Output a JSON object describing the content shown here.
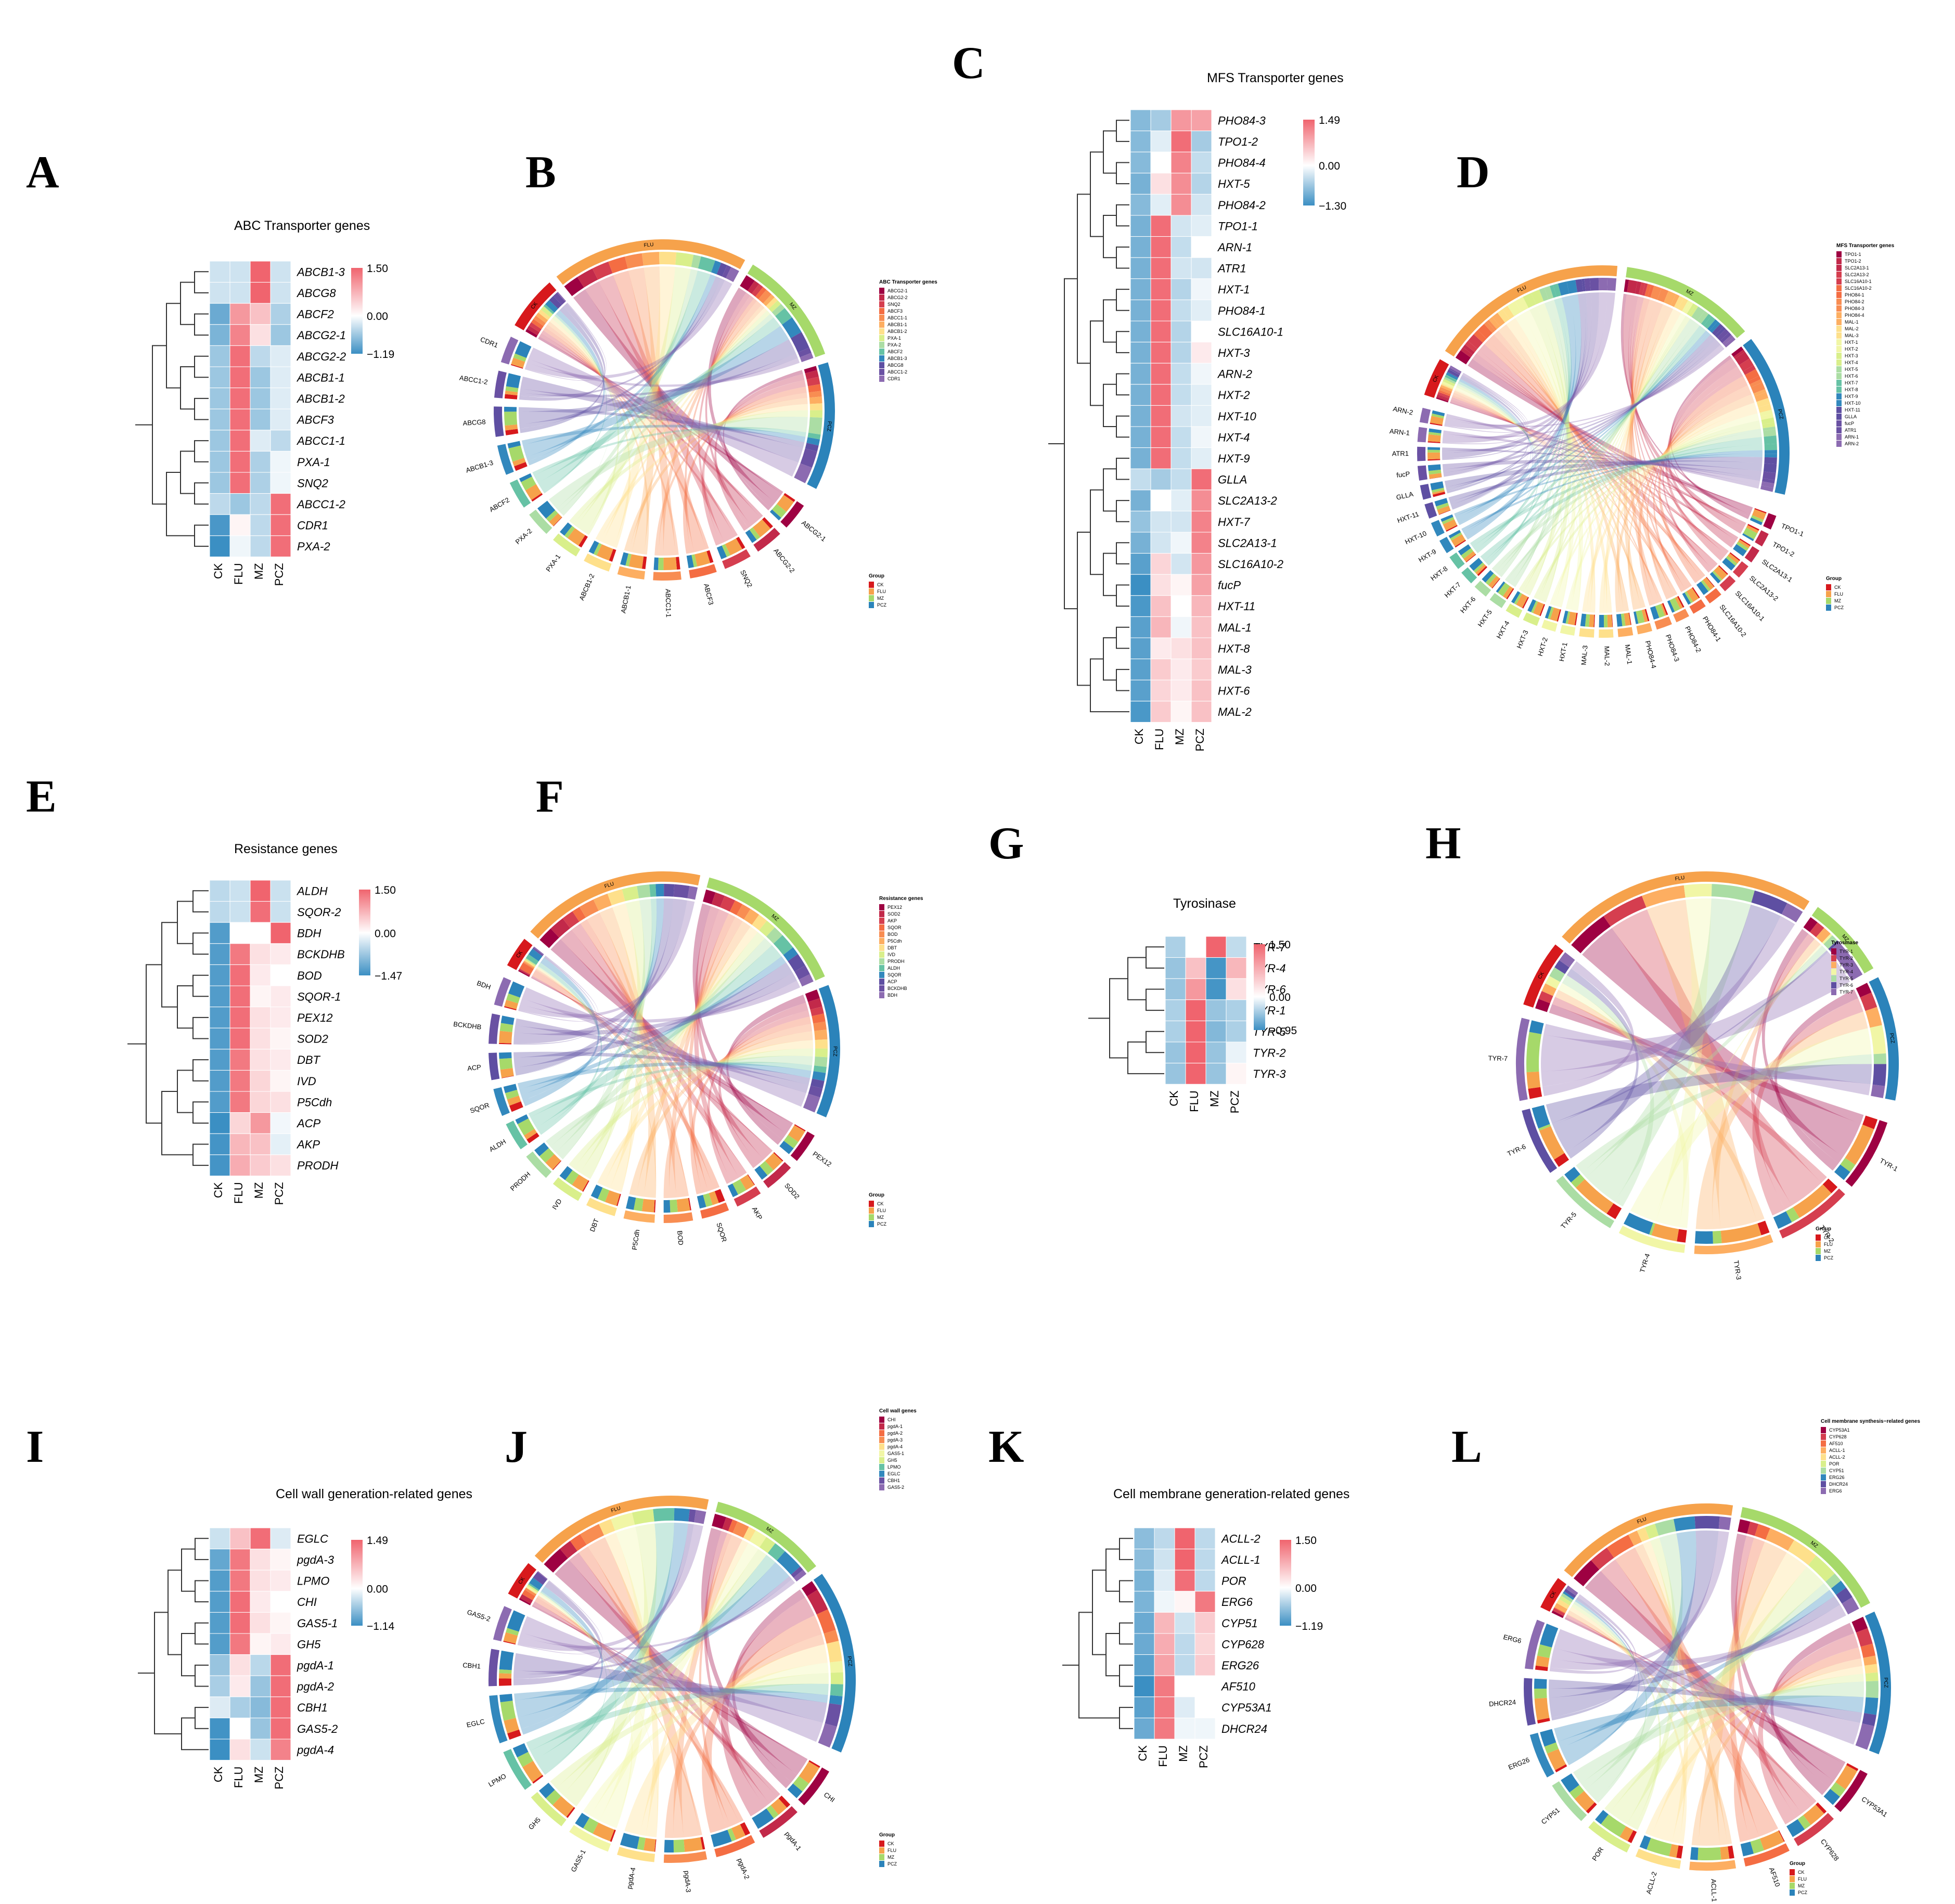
{
  "colors": {
    "low": "#3b8fc3",
    "mid": "#ffffff",
    "high": "#f0646e"
  },
  "group_colors": {
    "CK": "#d7191c",
    "FLU": "#f6a24b",
    "MZ": "#a6d96a",
    "PCZ": "#2b83ba"
  },
  "chart_data": [
    {
      "panel": "A",
      "type": "heatmap",
      "title": "ABC Transporter genes",
      "columns": [
        "CK",
        "FLU",
        "MZ",
        "PCZ"
      ],
      "rows": [
        "ABCB1-3",
        "ABCG8",
        "ABCF2",
        "ABCG2-1",
        "ABCG2-2",
        "ABCB1-1",
        "ABCB1-2",
        "ABCF3",
        "ABCC1-1",
        "PXA-1",
        "SNQ2",
        "ABCC1-2",
        "CDR1",
        "PXA-2"
      ],
      "values": [
        [
          -0.3,
          -0.3,
          1.5,
          -0.3
        ],
        [
          -0.3,
          -0.3,
          1.5,
          -0.3
        ],
        [
          -0.9,
          1.0,
          0.6,
          -0.5
        ],
        [
          -0.8,
          1.2,
          0.3,
          -0.6
        ],
        [
          -0.6,
          1.4,
          -0.4,
          -0.2
        ],
        [
          -0.6,
          1.4,
          -0.6,
          -0.2
        ],
        [
          -0.6,
          1.4,
          -0.6,
          -0.2
        ],
        [
          -0.6,
          1.4,
          -0.6,
          -0.2
        ],
        [
          -0.6,
          1.4,
          -0.2,
          -0.4
        ],
        [
          -0.6,
          1.4,
          -0.5,
          -0.1
        ],
        [
          -0.6,
          1.4,
          -0.5,
          -0.1
        ],
        [
          -0.4,
          -0.6,
          -0.4,
          1.4
        ],
        [
          -1.1,
          0.1,
          -0.4,
          1.4
        ],
        [
          -1.19,
          -0.1,
          -0.4,
          1.4
        ]
      ],
      "scale": {
        "max_label": "1.50",
        "mid_label": "0.00",
        "min_label": "−1.19",
        "max": 1.5,
        "min": -1.19
      }
    },
    {
      "panel": "B",
      "type": "chord",
      "legend_title": "ABC Transporter genes",
      "genes": [
        "ABCG2-1",
        "ABCG2-2",
        "SNQ2",
        "ABCF3",
        "ABCC1-1",
        "ABCB1-1",
        "ABCB1-2",
        "PXA-1",
        "PXA-2",
        "ABCF2",
        "ABCB1-3",
        "ABCG8",
        "ABCC1-2",
        "CDR1"
      ],
      "legend_order": [
        "ABCG2-1",
        "ABCG2-2",
        "SNQ2",
        "ABCF3",
        "ABCC1-1",
        "ABCB1-1",
        "ABCB1-2",
        "PXA-1",
        "PXA-2",
        "ABCF2",
        "ABCB1-3",
        "ABCG8",
        "ABCC1-2",
        "CDR1"
      ],
      "groups": [
        "CK",
        "FLU",
        "MZ",
        "PCZ"
      ],
      "group_legend_title": "Group"
    },
    {
      "panel": "C",
      "type": "heatmap",
      "title": "MFS Transporter genes",
      "columns": [
        "CK",
        "FLU",
        "MZ",
        "PCZ"
      ],
      "rows": [
        "PHO84-3",
        "TPO1-2",
        "PHO84-4",
        "HXT-5",
        "PHO84-2",
        "TPO1-1",
        "ARN-1",
        "ATR1",
        "HXT-1",
        "PHO84-1",
        "SLC16A10-1",
        "HXT-3",
        "ARN-2",
        "HXT-2",
        "HXT-10",
        "HXT-4",
        "HXT-9",
        "GLLA",
        "SLC2A13-2",
        "HXT-7",
        "SLC2A13-1",
        "SLC16A10-2",
        "fucP",
        "HXT-11",
        "MAL-1",
        "HXT-8",
        "MAL-3",
        "HXT-6",
        "MAL-2"
      ],
      "values": [
        [
          -0.8,
          -0.6,
          1.0,
          0.9
        ],
        [
          -0.8,
          -0.2,
          1.4,
          -0.6
        ],
        [
          -0.8,
          0.0,
          1.2,
          -0.4
        ],
        [
          -0.9,
          0.3,
          1.1,
          -0.5
        ],
        [
          -0.8,
          -0.2,
          1.1,
          -0.3
        ],
        [
          -0.9,
          1.4,
          -0.3,
          -0.2
        ],
        [
          -0.9,
          1.4,
          -0.4,
          0.0
        ],
        [
          -0.9,
          1.4,
          -0.3,
          -0.3
        ],
        [
          -0.9,
          1.4,
          -0.5,
          -0.1
        ],
        [
          -0.9,
          1.4,
          -0.4,
          -0.2
        ],
        [
          -0.9,
          1.4,
          -0.5,
          0.0
        ],
        [
          -0.9,
          1.4,
          -0.5,
          0.2
        ],
        [
          -0.9,
          1.4,
          -0.4,
          -0.1
        ],
        [
          -0.9,
          1.4,
          -0.4,
          -0.2
        ],
        [
          -0.9,
          1.4,
          -0.3,
          -0.2
        ],
        [
          -0.9,
          1.4,
          -0.4,
          -0.1
        ],
        [
          -0.9,
          1.4,
          -0.4,
          -0.2
        ],
        [
          -0.4,
          -0.6,
          -0.4,
          1.4
        ],
        [
          -0.9,
          0.0,
          -0.2,
          1.1
        ],
        [
          -0.7,
          -0.3,
          -0.3,
          1.2
        ],
        [
          -0.9,
          -0.3,
          -0.1,
          1.2
        ],
        [
          -1.1,
          0.4,
          -0.3,
          1.0
        ],
        [
          -1.3,
          0.3,
          0.1,
          0.9
        ],
        [
          -1.2,
          0.6,
          0.0,
          0.7
        ],
        [
          -1.1,
          0.7,
          -0.1,
          0.6
        ],
        [
          -1.1,
          0.2,
          0.3,
          0.6
        ],
        [
          -1.1,
          0.5,
          0.2,
          0.5
        ],
        [
          -1.1,
          0.4,
          0.2,
          0.6
        ],
        [
          -1.2,
          0.5,
          0.1,
          0.6
        ]
      ],
      "scale": {
        "max_label": "1.49",
        "mid_label": "0.00",
        "min_label": "−1.30",
        "max": 1.49,
        "min": -1.3
      }
    },
    {
      "panel": "D",
      "type": "chord",
      "legend_title": "MFS Transporter genes",
      "genes": [
        "TPO1-1",
        "TPO1-2",
        "SLC2A13-1",
        "SLC2A13-2",
        "SLC16A10-1",
        "SLC16A10-2",
        "PHO84-1",
        "PHO84-2",
        "PHO84-3",
        "PHO84-4",
        "MAL-1",
        "MAL-2",
        "MAL-3",
        "HXT-1",
        "HXT-2",
        "HXT-3",
        "HXT-4",
        "HXT-5",
        "HXT-6",
        "HXT-7",
        "HXT-8",
        "HXT-9",
        "HXT-10",
        "HXT-11",
        "GLLA",
        "fucP",
        "ATR1",
        "ARN-1",
        "ARN-2"
      ],
      "legend_order": [
        "TPO1-1",
        "TPO1-2",
        "SLC2A13-1",
        "SLC2A13-2",
        "SLC16A10-1",
        "SLC16A10-2",
        "PHO84-1",
        "PHO84-2",
        "PHO84-3",
        "PHO84-4",
        "MAL-1",
        "MAL-2",
        "MAL-3",
        "HXT-1",
        "HXT-2",
        "HXT-3",
        "HXT-4",
        "HXT-5",
        "HXT-6",
        "HXT-7",
        "HXT-8",
        "HXT-9",
        "HXT-10",
        "HXT-11",
        "GLLA",
        "fucP",
        "ATR1",
        "ARN-1",
        "ARN-2"
      ],
      "groups": [
        "CK",
        "FLU",
        "MZ",
        "PCZ"
      ],
      "group_legend_title": "Group"
    },
    {
      "panel": "E",
      "type": "heatmap",
      "title": "Resistance genes",
      "columns": [
        "CK",
        "FLU",
        "MZ",
        "PCZ"
      ],
      "rows": [
        "ALDH",
        "SQOR-2",
        "BDH",
        "BCKDHB",
        "BOD",
        "SQOR-1",
        "PEX12",
        "SOD2",
        "DBT",
        "IVD",
        "P5Cdh",
        "ACP",
        "AKP",
        "PRODH"
      ],
      "values": [
        [
          -0.5,
          -0.4,
          1.5,
          -0.4
        ],
        [
          -0.5,
          -0.4,
          1.4,
          -0.4
        ],
        [
          -1.3,
          0.0,
          0.0,
          1.5
        ],
        [
          -1.3,
          1.3,
          0.3,
          0.2
        ],
        [
          -1.3,
          1.4,
          0.2,
          0.0
        ],
        [
          -1.3,
          1.4,
          0.1,
          0.2
        ],
        [
          -1.3,
          1.4,
          0.3,
          0.2
        ],
        [
          -1.3,
          1.4,
          0.3,
          0.1
        ],
        [
          -1.3,
          1.3,
          0.3,
          0.2
        ],
        [
          -1.3,
          1.3,
          0.4,
          0.1
        ],
        [
          -1.3,
          1.3,
          0.4,
          0.3
        ],
        [
          -1.47,
          0.4,
          1.0,
          -0.1
        ],
        [
          -1.4,
          0.7,
          0.6,
          -0.2
        ],
        [
          -1.4,
          0.8,
          0.5,
          0.3
        ]
      ],
      "scale": {
        "max_label": "1.50",
        "mid_label": "0.00",
        "min_label": "−1.47",
        "max": 1.5,
        "min": -1.47
      }
    },
    {
      "panel": "F",
      "type": "chord",
      "legend_title": "Resistance genes",
      "genes": [
        "PEX12",
        "SOD2",
        "AKP",
        "SQOR",
        "BOD",
        "P5Cdh",
        "DBT",
        "IVD",
        "PRODH",
        "ALDH",
        "SQOR",
        "ACP",
        "BCKDHB",
        "BDH"
      ],
      "legend_order": [
        "PEX12",
        "SOD2",
        "AKP",
        "SQOR",
        "BOD",
        "P5Cdh",
        "DBT",
        "IVD",
        "PRODH",
        "ALDH",
        "SQOR",
        "ACP",
        "BCKDHB",
        "BDH"
      ],
      "groups": [
        "CK",
        "FLU",
        "MZ",
        "PCZ"
      ],
      "group_legend_title": "Group"
    },
    {
      "panel": "G",
      "type": "heatmap",
      "title": "Tyrosinase",
      "columns": [
        "CK",
        "FLU",
        "MZ",
        "PCZ"
      ],
      "rows": [
        "TYR-7",
        "TYR-4",
        "TYR-6",
        "TYR-1",
        "TYR-5",
        "TYR-2",
        "TYR-3"
      ],
      "values": [
        [
          -0.4,
          0.0,
          1.5,
          -0.3
        ],
        [
          -0.5,
          0.6,
          -0.9,
          0.7
        ],
        [
          -0.5,
          1.0,
          -0.9,
          0.3
        ],
        [
          -0.4,
          1.5,
          -0.5,
          -0.4
        ],
        [
          -0.4,
          1.5,
          -0.6,
          -0.4
        ],
        [
          -0.5,
          1.5,
          -0.5,
          -0.1
        ],
        [
          -0.5,
          1.5,
          -0.5,
          0.1
        ]
      ],
      "scale": {
        "max_label": "1.50",
        "mid_label": "0.00",
        "min_label": "−0.95",
        "max": 1.5,
        "min": -0.95
      }
    },
    {
      "panel": "H",
      "type": "chord",
      "legend_title": "Tyrosinase",
      "genes": [
        "TYR-1",
        "TYR-2",
        "TYR-3",
        "TYR-4",
        "TYR-5",
        "TYR-6",
        "TYR-7"
      ],
      "legend_order": [
        "TYR-1",
        "TYR-2",
        "TYR-3",
        "TYR-4",
        "TYR-5",
        "TYR-6",
        "TYR-7"
      ],
      "groups": [
        "CK",
        "FLU",
        "MZ",
        "PCZ"
      ],
      "group_legend_title": "Group"
    },
    {
      "panel": "I",
      "type": "heatmap",
      "title": "Cell wall generation-related genes",
      "columns": [
        "CK",
        "FLU",
        "MZ",
        "PCZ"
      ],
      "rows": [
        "EGLC",
        "pgdA-3",
        "LPMO",
        "CHI",
        "GAS5-1",
        "GH5",
        "pgdA-1",
        "pgdA-2",
        "CBH1",
        "GAS5-2",
        "pgdA-4"
      ],
      "values": [
        [
          -0.3,
          0.6,
          1.4,
          -0.2
        ],
        [
          -0.9,
          1.3,
          0.3,
          0.1
        ],
        [
          -1.0,
          1.3,
          0.3,
          0.2
        ],
        [
          -1.0,
          1.4,
          0.2,
          0.0
        ],
        [
          -1.0,
          1.4,
          0.3,
          0.1
        ],
        [
          -1.0,
          1.3,
          0.1,
          0.2
        ],
        [
          -0.6,
          0.3,
          -0.4,
          1.4
        ],
        [
          -0.5,
          0.2,
          -0.6,
          1.4
        ],
        [
          -0.2,
          -0.5,
          -0.7,
          1.4
        ],
        [
          -1.1,
          0.0,
          -0.6,
          1.4
        ],
        [
          -1.14,
          0.3,
          -0.3,
          1.2
        ]
      ],
      "scale": {
        "max_label": "1.49",
        "mid_label": "0.00",
        "min_label": "−1.14",
        "max": 1.49,
        "min": -1.14
      }
    },
    {
      "panel": "J",
      "type": "chord",
      "legend_title": "Cell wall genes",
      "genes": [
        "CHI",
        "pgdA-1",
        "pgdA-2",
        "pgdA-3",
        "pgdA-4",
        "GAS5-1",
        "GH5",
        "LPMO",
        "EGLC",
        "CBH1",
        "GAS5-2"
      ],
      "legend_order": [
        "CHI",
        "pgdA-1",
        "pgdA-2",
        "pgdA-3",
        "pgdA-4",
        "GAS5-1",
        "GH5",
        "LPMO",
        "EGLC",
        "CBH1",
        "GAS5-2"
      ],
      "groups": [
        "CK",
        "FLU",
        "MZ",
        "PCZ"
      ],
      "group_legend_title": "Group"
    },
    {
      "panel": "K",
      "type": "heatmap",
      "title": "Cell membrane generation-related genes",
      "columns": [
        "CK",
        "FLU",
        "MZ",
        "PCZ"
      ],
      "rows": [
        "ACLL-2",
        "ACLL-1",
        "POR",
        "ERG6",
        "CYP51",
        "CYP628",
        "ERG26",
        "AF510",
        "CYP53A1",
        "DHCR24"
      ],
      "values": [
        [
          -0.7,
          -0.4,
          1.5,
          -0.4
        ],
        [
          -0.7,
          -0.3,
          1.5,
          -0.4
        ],
        [
          -0.8,
          -0.2,
          1.4,
          -0.4
        ],
        [
          -0.8,
          -0.1,
          0.1,
          1.3
        ],
        [
          -0.9,
          0.7,
          -0.3,
          0.5
        ],
        [
          -0.9,
          0.8,
          -0.4,
          0.4
        ],
        [
          -1.0,
          0.9,
          -0.4,
          0.5
        ],
        [
          -1.19,
          1.3,
          0.0,
          0.0
        ],
        [
          -1.0,
          1.3,
          -0.2,
          0.0
        ],
        [
          -0.9,
          1.3,
          -0.1,
          -0.1
        ]
      ],
      "scale": {
        "max_label": "1.50",
        "mid_label": "0.00",
        "min_label": "−1.19",
        "max": 1.5,
        "min": -1.19
      }
    },
    {
      "panel": "L",
      "type": "chord",
      "legend_title": "Cell membrane synthesis−related genes",
      "genes": [
        "CYP53A1",
        "CYP628",
        "AF510",
        "ACLL-1",
        "ACLL-2",
        "POR",
        "CYP51",
        "ERG26",
        "DHCR24",
        "ERG6"
      ],
      "legend_order": [
        "CYP53A1",
        "CYP628",
        "AF510",
        "ACLL-1",
        "ACLL-2",
        "POR",
        "CYP51",
        "ERG26",
        "DHCR24",
        "ERG6"
      ],
      "groups": [
        "CK",
        "FLU",
        "MZ",
        "PCZ"
      ],
      "group_legend_title": "Group"
    }
  ]
}
